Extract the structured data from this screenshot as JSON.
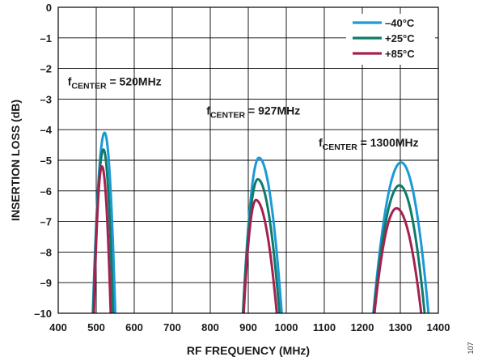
{
  "chart_data": {
    "type": "line",
    "title": "",
    "xlabel": "RF FREQUENCY (MHz)",
    "ylabel": "INSERTION LOSS  (dB)",
    "xlim": [
      400,
      1400
    ],
    "ylim": [
      -10,
      0
    ],
    "x_ticks": [
      "400",
      "500",
      "600",
      "700",
      "800",
      "900",
      "1000",
      "1100",
      "1200",
      "1300",
      "1400"
    ],
    "y_ticks": [
      "0",
      "–1",
      "–2",
      "–3",
      "–4",
      "–5",
      "–6",
      "–7",
      "–8",
      "–9",
      "–10"
    ],
    "grid": true,
    "legend_position": "top-right",
    "figure_id": "107",
    "annotations": [
      {
        "prefix": "f",
        "sub": "CENTER",
        "text": " = 520MHz",
        "x": 425,
        "y": -2.55
      },
      {
        "prefix": "f",
        "sub": "CENTER",
        "text": " = 927MHz",
        "x": 790,
        "y": -3.5
      },
      {
        "prefix": "f",
        "sub": "CENTER",
        "text": " = 1300MHz",
        "x": 1085,
        "y": -4.55
      }
    ],
    "series": [
      {
        "name": "–40°C",
        "color": "#1b9ad6",
        "bands": [
          {
            "center": 522,
            "peak": -4.1,
            "x_min": 491,
            "x_max": 550
          },
          {
            "center": 928,
            "peak": -4.92,
            "x_min": 886,
            "x_max": 988
          },
          {
            "center": 1302,
            "peak": -5.07,
            "x_min": 1229,
            "x_max": 1374
          }
        ]
      },
      {
        "name": "+25°C",
        "color": "#0f7a6a",
        "bands": [
          {
            "center": 519,
            "peak": -4.65,
            "x_min": 492,
            "x_max": 544
          },
          {
            "center": 925,
            "peak": -5.62,
            "x_min": 886,
            "x_max": 982
          },
          {
            "center": 1298,
            "peak": -5.82,
            "x_min": 1230,
            "x_max": 1364
          }
        ]
      },
      {
        "name": "+85°C",
        "color": "#a5214f",
        "bands": [
          {
            "center": 515,
            "peak": -5.2,
            "x_min": 494,
            "x_max": 538
          },
          {
            "center": 920,
            "peak": -6.3,
            "x_min": 888,
            "x_max": 975
          },
          {
            "center": 1290,
            "peak": -6.57,
            "x_min": 1232,
            "x_max": 1355
          }
        ]
      }
    ]
  }
}
